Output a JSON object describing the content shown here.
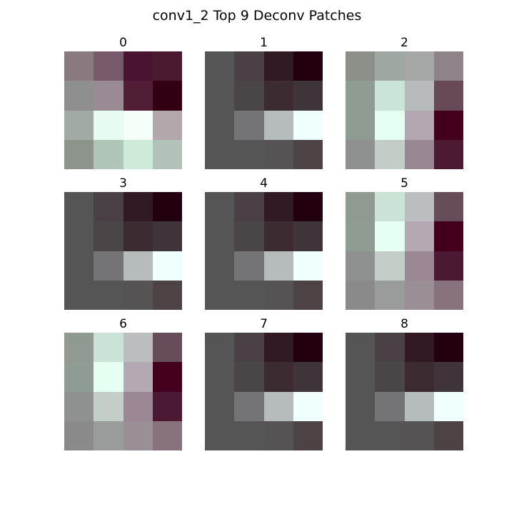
{
  "figure": {
    "title": "conv1_2 Top 9 Deconv Patches"
  },
  "patches": [
    {
      "label": "0",
      "colors": [
        [
          "#8a7a80",
          "#765a6a",
          "#4a1430",
          "#4a1a30"
        ],
        [
          "#8f8f90",
          "#998a93",
          "#521e35",
          "#320012"
        ],
        [
          "#a2aaa5",
          "#e8fbf2",
          "#f5fff9",
          "#b2a7ab"
        ],
        [
          "#8c948c",
          "#aec5b7",
          "#cdebd8",
          "#b2c2b8"
        ]
      ]
    },
    {
      "label": "1",
      "colors": [
        [
          "#555555",
          "#4a4146",
          "#311a24",
          "#220010"
        ],
        [
          "#555555",
          "#4a4648",
          "#3c2c32",
          "#3f3439"
        ],
        [
          "#555555",
          "#747476",
          "#b5bcbb",
          "#eefffd"
        ],
        [
          "#555555",
          "#555555",
          "#555353",
          "#4d4345"
        ]
      ]
    },
    {
      "label": "2",
      "colors": [
        [
          "#8c8f8a",
          "#9ea8a3",
          "#a5a8a7",
          "#8e8388"
        ],
        [
          "#8f9c93",
          "#cbe4d9",
          "#b8bbbc",
          "#674958"
        ],
        [
          "#8f9c93",
          "#e4fff1",
          "#b5a7b2",
          "#43001c"
        ],
        [
          "#8e9190",
          "#c2cdc8",
          "#9a8794",
          "#4c1b33"
        ]
      ]
    },
    {
      "label": "3",
      "colors": [
        [
          "#555555",
          "#4a4146",
          "#311a24",
          "#220010"
        ],
        [
          "#555555",
          "#4a4648",
          "#3c2c32",
          "#3f3439"
        ],
        [
          "#555555",
          "#747476",
          "#b5bcbb",
          "#eefffd"
        ],
        [
          "#555555",
          "#555555",
          "#555353",
          "#4d4345"
        ]
      ]
    },
    {
      "label": "4",
      "colors": [
        [
          "#555555",
          "#4a4146",
          "#311a24",
          "#220010"
        ],
        [
          "#555555",
          "#4a4648",
          "#3c2c32",
          "#3f3439"
        ],
        [
          "#555555",
          "#747476",
          "#b5bcbb",
          "#eefffd"
        ],
        [
          "#555555",
          "#555555",
          "#555353",
          "#4d4345"
        ]
      ]
    },
    {
      "label": "5",
      "colors": [
        [
          "#8f9a92",
          "#cbe2d7",
          "#bbbdbe",
          "#674c59"
        ],
        [
          "#8f9c93",
          "#e5fff2",
          "#b4a8b2",
          "#42001c"
        ],
        [
          "#8e9190",
          "#c3cec9",
          "#9b8894",
          "#4b1a32"
        ],
        [
          "#8a8a8a",
          "#9a9c9b",
          "#9a8f97",
          "#87727d"
        ]
      ]
    },
    {
      "label": "6",
      "colors": [
        [
          "#8f9a92",
          "#cbe2d7",
          "#bbbdbe",
          "#674c59"
        ],
        [
          "#8f9c93",
          "#e5fff2",
          "#b4a8b2",
          "#42001c"
        ],
        [
          "#8e9190",
          "#c3cec9",
          "#9b8894",
          "#4b1a32"
        ],
        [
          "#8a8a8a",
          "#9a9c9b",
          "#9a8f97",
          "#87727d"
        ]
      ]
    },
    {
      "label": "7",
      "colors": [
        [
          "#555555",
          "#4a4146",
          "#311a24",
          "#220010"
        ],
        [
          "#555555",
          "#4a4648",
          "#3c2c32",
          "#3f3439"
        ],
        [
          "#555555",
          "#747476",
          "#b5bcbb",
          "#eefffd"
        ],
        [
          "#555555",
          "#555555",
          "#555353",
          "#4d4345"
        ]
      ]
    },
    {
      "label": "8",
      "colors": [
        [
          "#555555",
          "#4a4146",
          "#311a24",
          "#220010"
        ],
        [
          "#555555",
          "#4a4648",
          "#3c2c32",
          "#3f3439"
        ],
        [
          "#555555",
          "#747476",
          "#b5bcbb",
          "#eefffd"
        ],
        [
          "#555555",
          "#555555",
          "#555353",
          "#4d4345"
        ]
      ]
    }
  ]
}
